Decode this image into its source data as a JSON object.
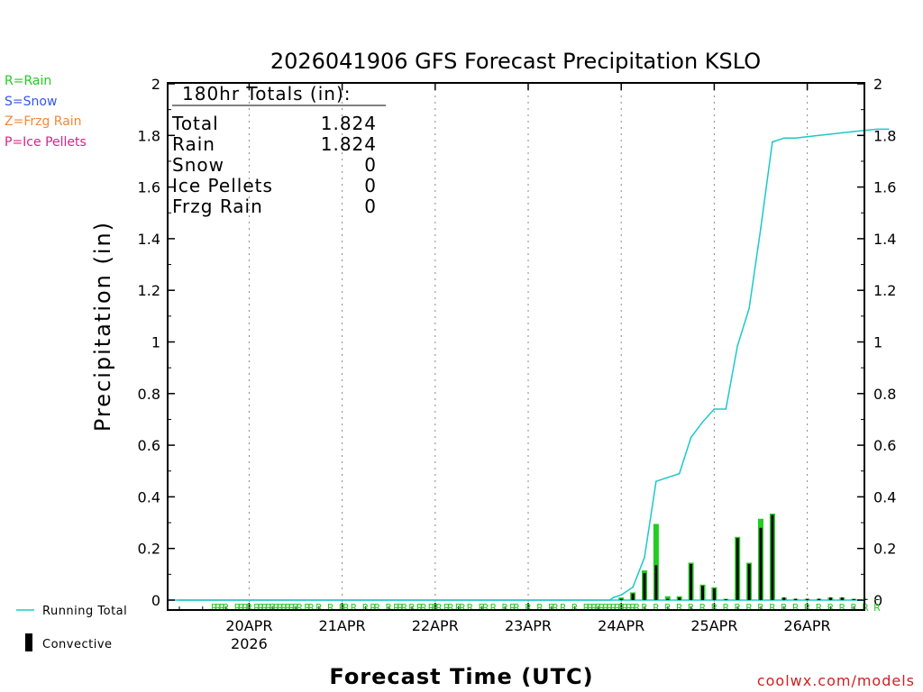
{
  "page": {
    "legend_codes": [
      {
        "label": "R=Rain",
        "color": "#22cc22"
      },
      {
        "label": "S=Snow",
        "color": "#3355ee"
      },
      {
        "label": "Z=Frzg Rain",
        "color": "#f0883a"
      },
      {
        "label": "P=Ice Pellets",
        "color": "#e0208a"
      }
    ],
    "bottom_legend": {
      "running_total": "Running Total",
      "convective": "Convective",
      "running_total_color": "#1ec8c8",
      "convective_color": "#000000"
    },
    "credit": "coolwx.com/models",
    "credit_color": "#cc2222"
  },
  "chart_data": {
    "type": "bar",
    "title": "2026041906 GFS Forecast Precipitation KSLO",
    "xlabel": "Forecast Time (UTC)",
    "ylabel": "Precipitation (in)",
    "ylim": [
      0,
      2
    ],
    "yticks": [
      "0",
      "0.2",
      "0.4",
      "0.6",
      "0.8",
      "1",
      "1.2",
      "1.4",
      "1.6",
      "1.8",
      "2"
    ],
    "xlim_hours": [
      0,
      183
    ],
    "x_ticks": [
      {
        "label": "20APR",
        "hour": 18,
        "sublabel": "2026"
      },
      {
        "label": "21APR",
        "hour": 42
      },
      {
        "label": "22APR",
        "hour": 66
      },
      {
        "label": "23APR",
        "hour": 90
      },
      {
        "label": "24APR",
        "hour": 114
      },
      {
        "label": "25APR",
        "hour": 138
      },
      {
        "label": "26APR",
        "hour": 162
      }
    ],
    "totals_box": {
      "heading": "180hr Totals (in):",
      "rows": [
        {
          "label": "Total",
          "value": "1.824"
        },
        {
          "label": "Rain",
          "value": "1.824"
        },
        {
          "label": "Snow",
          "value": "0"
        },
        {
          "label": "Ice Pellets",
          "value": "0"
        },
        {
          "label": "Frzg Rain",
          "value": "0"
        }
      ]
    },
    "precip_type_marker": "R",
    "marker_hours": [
      9,
      10,
      11,
      12,
      15,
      16,
      17,
      18,
      20,
      21,
      22,
      23,
      24,
      25,
      26,
      27,
      28,
      29,
      30,
      31,
      33,
      34,
      36,
      39,
      42,
      43,
      45,
      48,
      50,
      51,
      54,
      56,
      57,
      58,
      60,
      62,
      63,
      65,
      66,
      67,
      69,
      70,
      72,
      73,
      75,
      78,
      79,
      81,
      84,
      86,
      87,
      90,
      93,
      96,
      97,
      99,
      102,
      105,
      106,
      107,
      108,
      109,
      110,
      111,
      112,
      113,
      114,
      115,
      116,
      117,
      118,
      120,
      123,
      126,
      129,
      132,
      135,
      138,
      141,
      144,
      147,
      150,
      153,
      156,
      159,
      162,
      165,
      168,
      171,
      174,
      177,
      180
    ],
    "series": [
      {
        "name": "Running Total",
        "color": "#1ec8c8",
        "hours": [
          0,
          111,
          112,
          114,
          117,
          120,
          123,
          126,
          129,
          132,
          135,
          138,
          141,
          144,
          147,
          150,
          153,
          156,
          159,
          162,
          165,
          168,
          171,
          174,
          177,
          180,
          183
        ],
        "values": [
          0,
          0,
          0.01,
          0.02,
          0.05,
          0.165,
          0.46,
          0.475,
          0.49,
          0.63,
          0.69,
          0.74,
          0.74,
          0.985,
          1.13,
          1.44,
          1.775,
          1.79,
          1.79,
          1.795,
          1.8,
          1.805,
          1.81,
          1.815,
          1.82,
          1.824,
          1.824
        ]
      },
      {
        "name": "Rain",
        "color": "#22cc22",
        "hours": [
          114,
          117,
          120,
          123,
          126,
          129,
          132,
          135,
          138,
          141,
          144,
          147,
          150,
          153,
          156,
          159,
          162,
          165,
          168,
          171,
          174,
          177,
          180
        ],
        "values": [
          0.01,
          0.03,
          0.115,
          0.295,
          0.015,
          0.015,
          0.145,
          0.06,
          0.05,
          0.005,
          0.245,
          0.145,
          0.315,
          0.335,
          0.01,
          0.005,
          0.005,
          0.005,
          0.01,
          0.01,
          0.005,
          0.005,
          0.004
        ]
      },
      {
        "name": "Convective",
        "color": "#000000",
        "hours": [
          114,
          117,
          120,
          123,
          126,
          129,
          132,
          135,
          138,
          141,
          144,
          147,
          150,
          153,
          156,
          159,
          162,
          165,
          168,
          171,
          174,
          177,
          180
        ],
        "values": [
          0.005,
          0.025,
          0.105,
          0.135,
          0.005,
          0.01,
          0.14,
          0.055,
          0.045,
          0.003,
          0.24,
          0.14,
          0.28,
          0.33,
          0.01,
          0.005,
          0.005,
          0.005,
          0.01,
          0.01,
          0.004,
          0.004,
          0.003
        ]
      }
    ]
  }
}
